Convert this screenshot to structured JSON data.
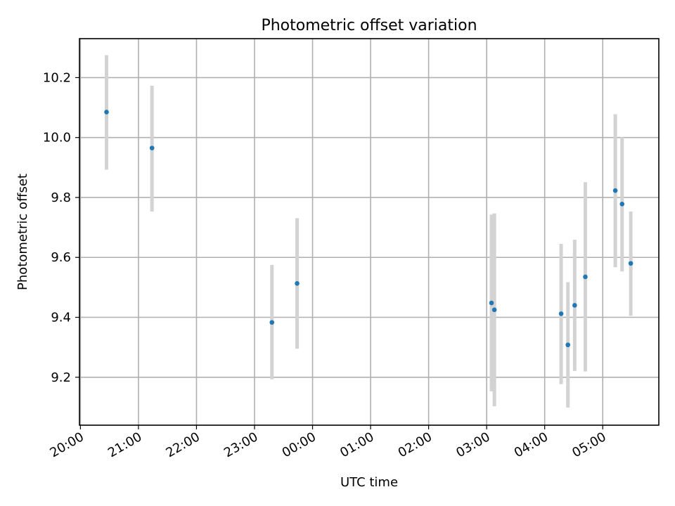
{
  "chart_data": {
    "type": "scatter",
    "title": "Photometric offset variation",
    "xlabel": "UTC time",
    "ylabel": "Photometric offset",
    "x_axis_kind": "time (UTC, crossing midnight)",
    "x_tick_labels": [
      "20:00",
      "21:00",
      "22:00",
      "23:00",
      "00:00",
      "01:00",
      "02:00",
      "03:00",
      "04:00",
      "05:00"
    ],
    "y_ticks": [
      9.2,
      9.4,
      9.6,
      9.8,
      10.0,
      10.2
    ],
    "y_tick_labels": [
      "9.2",
      "9.4",
      "9.6",
      "9.8",
      "10.0",
      "10.2"
    ],
    "ylim": [
      9.04,
      10.33
    ],
    "xlim": [
      "19:59",
      "05:58"
    ],
    "grid": true,
    "colors": {
      "points": "#1f77b4",
      "errorbars": "#d3d3d3",
      "grid": "#b0b0b0"
    },
    "points": [
      {
        "x": "20:27",
        "y": 10.085,
        "ylow": 9.893,
        "yhigh": 10.275
      },
      {
        "x": "21:14",
        "y": 9.965,
        "ylow": 9.753,
        "yhigh": 10.173
      },
      {
        "x": "23:18",
        "y": 9.383,
        "ylow": 9.193,
        "yhigh": 9.575
      },
      {
        "x": "23:44",
        "y": 9.513,
        "ylow": 9.295,
        "yhigh": 9.731
      },
      {
        "x": "03:05",
        "y": 9.448,
        "ylow": 9.153,
        "yhigh": 9.743
      },
      {
        "x": "03:08",
        "y": 9.425,
        "ylow": 9.103,
        "yhigh": 9.747
      },
      {
        "x": "04:17",
        "y": 9.412,
        "ylow": 9.177,
        "yhigh": 9.645
      },
      {
        "x": "04:24",
        "y": 9.308,
        "ylow": 9.099,
        "yhigh": 9.517
      },
      {
        "x": "04:31",
        "y": 9.44,
        "ylow": 9.221,
        "yhigh": 9.659
      },
      {
        "x": "04:42",
        "y": 9.535,
        "ylow": 9.219,
        "yhigh": 9.851
      },
      {
        "x": "05:13",
        "y": 9.823,
        "ylow": 9.567,
        "yhigh": 10.078
      },
      {
        "x": "05:20",
        "y": 9.778,
        "ylow": 9.553,
        "yhigh": 10.001
      },
      {
        "x": "05:29",
        "y": 9.58,
        "ylow": 9.405,
        "yhigh": 9.753
      }
    ]
  }
}
